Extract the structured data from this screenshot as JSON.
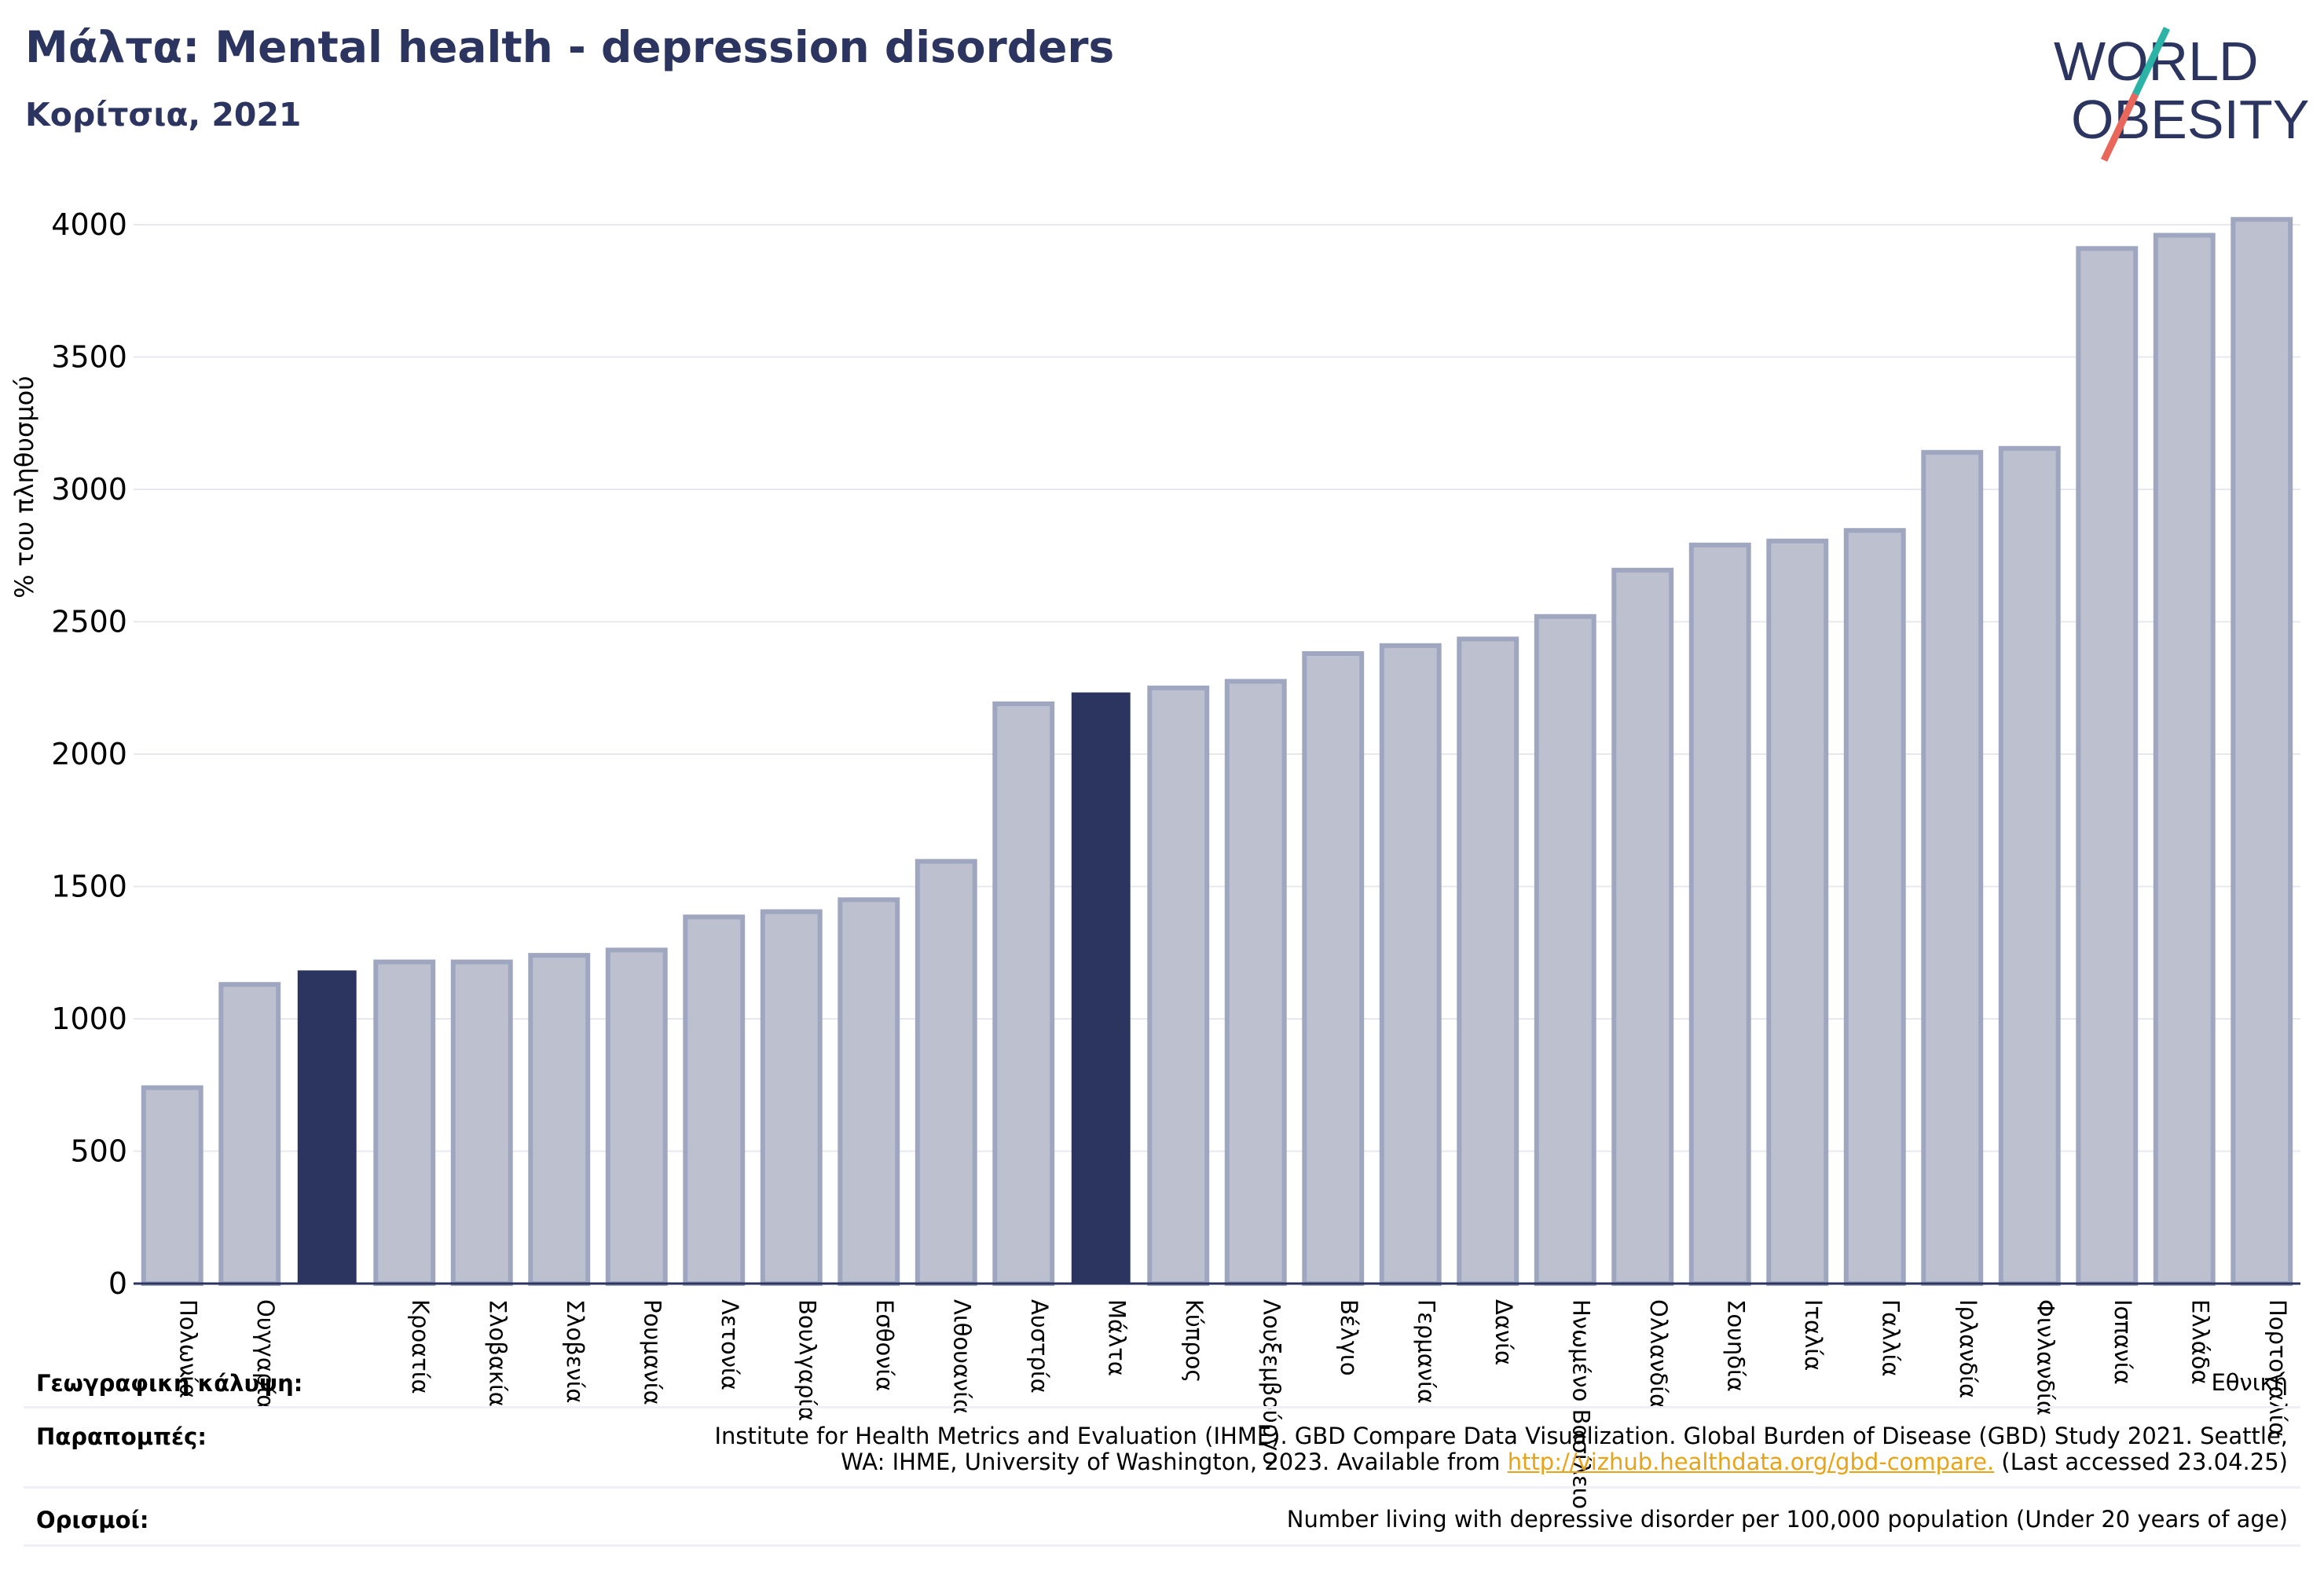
{
  "header": {
    "title": "Μάλτα: Mental health - depression disorders",
    "subtitle": "Κορίτσια, 2021"
  },
  "logo": {
    "line1": "WORLD",
    "line2": "OBESITY",
    "colors": {
      "text": "#2b3560",
      "slash_teal": "#2bb3a8",
      "slash_coral": "#e8665a"
    }
  },
  "chart_data": {
    "type": "bar",
    "ylabel": "% του πληθυσμού",
    "ylim": [
      0,
      4000
    ],
    "yticks": [
      0,
      500,
      1000,
      1500,
      2000,
      2500,
      3000,
      3500,
      4000
    ],
    "grid": true,
    "categories": [
      "Πολωνία",
      "Ουγγαρία",
      "",
      "Κροατία",
      "Σλοβακία",
      "Σλοβενία",
      "Ρουμανία",
      "Λετονία",
      "Βουλγαρία",
      "Εσθονία",
      "Λιθουανία",
      "Αυστρία",
      "Μάλτα",
      "Κύπρος",
      "Λουξεμβούργο",
      "Βέλγιο",
      "Γερμανία",
      "Δανία",
      "Ηνωμένο Βασίλειο",
      "Ολλανδία",
      "Σουηδία",
      "Ιταλία",
      "Γαλλία",
      "Ιρλανδία",
      "Φινλανδία",
      "Ισπανία",
      "Ελλάδα",
      "Πορτογαλία"
    ],
    "values": [
      740,
      1130,
      1180,
      1215,
      1215,
      1240,
      1260,
      1385,
      1405,
      1450,
      1595,
      2190,
      2230,
      2250,
      2275,
      2380,
      2410,
      2435,
      2520,
      2695,
      2790,
      2805,
      2845,
      3140,
      3155,
      3910,
      3960,
      4020
    ],
    "highlighted": [
      2,
      12
    ],
    "colors": {
      "bar": "#bcc0cf",
      "bar_edge": "#9fa6bf",
      "highlight": "#2b3560",
      "grid": "#e6e8ee",
      "axis": "#2b3560"
    }
  },
  "footer": {
    "coverage_label": "Γεωγραφική κάλυψη:",
    "coverage_value": "Εθνική",
    "references_label": "Παραπομπές:",
    "references_line1": "Institute for Health Metrics and Evaluation (IHME). GBD Compare Data Visualization. Global Burden of Disease (GBD) Study 2021. Seattle,",
    "references_line2_pre": "WA: IHME, University of Washington, 2023. Available from ",
    "references_link": "http://vizhub.healthdata.org/gbd-compare.",
    "references_line2_post": " (Last accessed 23.04.25)",
    "definitions_label": "Ορισμοί:",
    "definitions_value": "Number living with depressive disorder per 100,000 population (Under 20 years of age)"
  }
}
